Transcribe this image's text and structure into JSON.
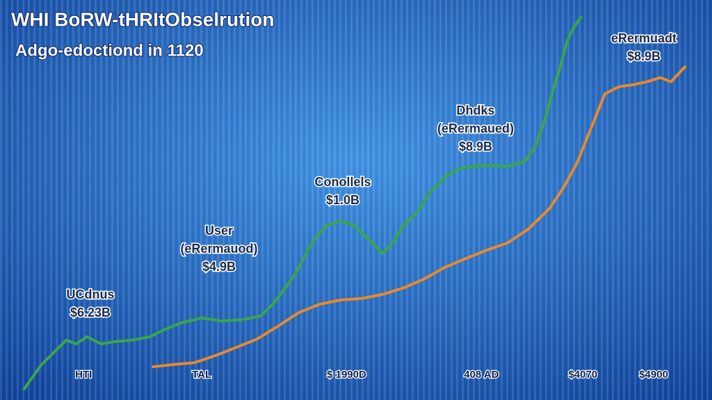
{
  "chart_data": {
    "type": "line",
    "title": "WHI BoRW-tHRItObselrution",
    "subtitle": "Adgo-edoctiond in 1120",
    "xlim": [
      0,
      100
    ],
    "ylim": [
      0,
      100
    ],
    "xticks": [
      {
        "value": 9.4,
        "label": "HTI"
      },
      {
        "value": 27.1,
        "label": "TAL"
      },
      {
        "value": 48.8,
        "label": "$ 1990D"
      },
      {
        "value": 69,
        "label": "408 AD"
      },
      {
        "value": 84.2,
        "label": "$4070"
      },
      {
        "value": 94.8,
        "label": "$4900"
      }
    ],
    "annotations": [
      [
        "UCdnus",
        "$6.23B"
      ],
      [
        "User",
        "(eRermauod)",
        "$4.9B"
      ],
      [
        "Conollels",
        "$1.0B"
      ],
      [
        "Dhdks",
        "(eRermaued)",
        "$8.9B"
      ],
      [
        "eRermuadt",
        "$8.9B"
      ]
    ],
    "series": [
      {
        "color": "#3aa64a",
        "x": [
          0.5,
          3.1,
          4.7,
          6.8,
          8.3,
          9.9,
          12,
          14.1,
          16.7,
          19.3,
          21.4,
          24,
          27.1,
          30.2,
          33.3,
          35.9,
          38,
          39.6,
          41.1,
          42.7,
          44.3,
          45.8,
          47.9,
          50,
          52.1,
          54.2,
          55.7,
          57.3,
          59.4,
          61.5,
          63.5,
          65.6,
          68.8,
          70.8,
          72.9,
          75.5,
          77.1,
          78.6,
          79.7,
          80.7,
          81.8,
          82.8,
          83.9
        ],
        "values": [
          0,
          6.5,
          9.3,
          13,
          12,
          13.9,
          12,
          12.6,
          13,
          13.9,
          15.7,
          17.6,
          18.9,
          18.1,
          18.5,
          19.4,
          23.1,
          26.9,
          30.6,
          36.1,
          40.7,
          43.5,
          44.8,
          43.5,
          39.8,
          36.1,
          38.9,
          43.5,
          47.2,
          52.8,
          56.5,
          58.7,
          59.6,
          59.6,
          59.3,
          60.7,
          64.8,
          72.2,
          79.6,
          85.2,
          92.6,
          96.3,
          99.1
        ]
      },
      {
        "color": "#e8892c",
        "x": [
          19.8,
          22.9,
          26,
          29.2,
          32.3,
          35.4,
          38.5,
          41.7,
          44.8,
          47.9,
          51,
          54.2,
          57.3,
          60.4,
          63.5,
          66.7,
          69.8,
          72.9,
          76,
          79.2,
          81.3,
          83.3,
          85.4,
          87.5,
          89.6,
          91.7,
          93.8,
          95.8,
          97.4,
          99.5
        ],
        "values": [
          5.9,
          6.5,
          7,
          8.9,
          11.1,
          13.3,
          16.7,
          20.4,
          22.6,
          23.7,
          24.1,
          25.2,
          26.9,
          29.3,
          32.4,
          34.8,
          37,
          38.9,
          42.6,
          48.1,
          53.7,
          60.2,
          69.4,
          78.7,
          80.6,
          81.1,
          81.9,
          83,
          81.9,
          85.9
        ]
      }
    ]
  }
}
